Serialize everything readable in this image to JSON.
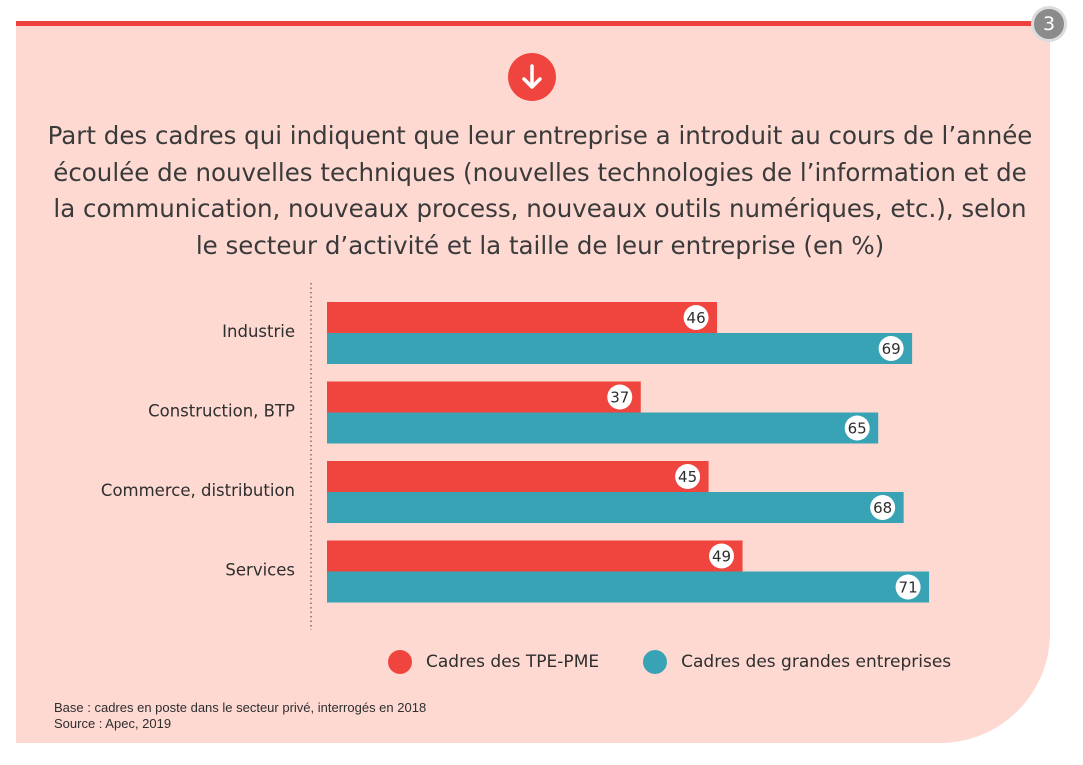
{
  "page_number": "3",
  "icon": "arrow-down-icon",
  "title": "Part des cadres qui indiquent que leur entreprise a introduit au cours de l’année écoulée de nouvelles techniques (nouvelles technologies de l’information et de la communication, nouveaux process, nouveaux outils numériques, etc.), selon le secteur d’activité et la taille de leur entreprise (en %)",
  "colors": {
    "panel_bg": "#fdd9d2",
    "accent_red": "#f0443f",
    "series_tpe_pme": "#f0443f",
    "series_grandes": "#38a3b5"
  },
  "chart_data": {
    "type": "bar",
    "orientation": "horizontal",
    "title": "Part des cadres qui indiquent que leur entreprise a introduit au cours de l’année écoulée de nouvelles techniques (nouvelles technologies de l’information et de la communication, nouveaux process, nouveaux outils numériques, etc.), selon le secteur d’activité et la taille de leur entreprise (en %)",
    "categories": [
      "Industrie",
      "Construction, BTP",
      "Commerce, distribution",
      "Services"
    ],
    "series": [
      {
        "name": "Cadres des TPE-PME",
        "color": "#f0443f",
        "values": [
          46,
          37,
          45,
          49
        ]
      },
      {
        "name": "Cadres des grandes entreprises",
        "color": "#38a3b5",
        "values": [
          69,
          65,
          68,
          71
        ]
      }
    ],
    "xlim": [
      0,
      100
    ],
    "grid": false,
    "data_labels": true,
    "legend_position": "bottom"
  },
  "legend": [
    {
      "label": "Cadres des TPE-PME",
      "color": "#f0443f"
    },
    {
      "label": "Cadres des grandes entreprises",
      "color": "#38a3b5"
    }
  ],
  "notes": {
    "base": "Base : cadres en poste dans le secteur privé, interrogés en 2018",
    "source": "Source : Apec, 2019"
  }
}
